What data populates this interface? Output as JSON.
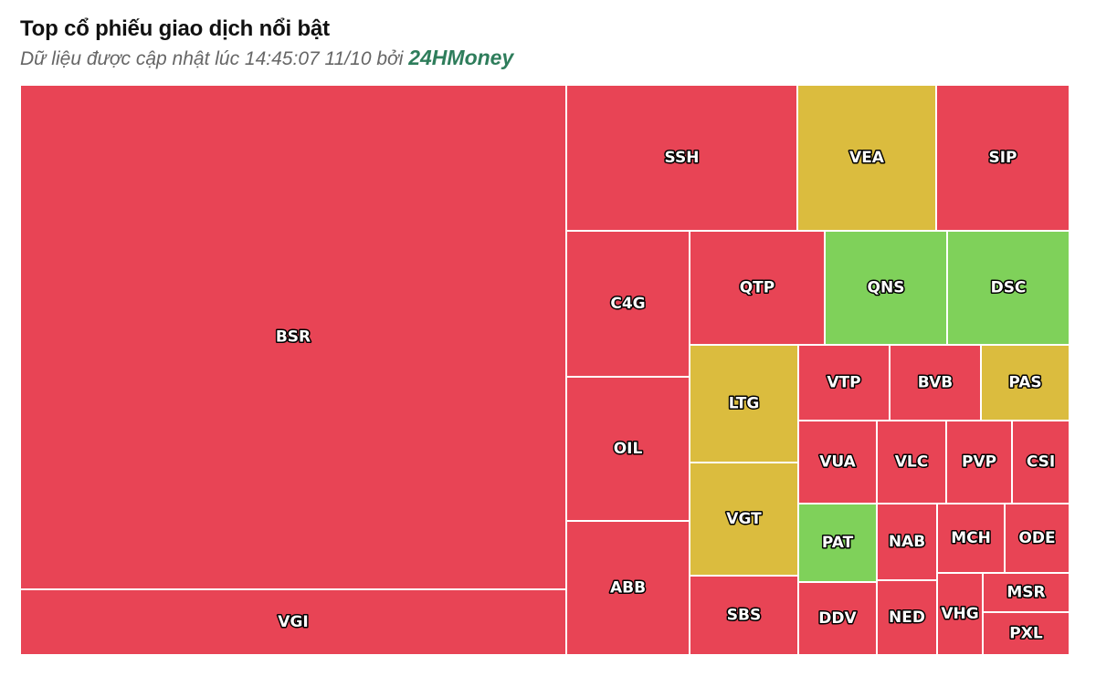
{
  "header": {
    "title": "Top cổ phiếu giao dịch nổi bật",
    "subtitle_prefix": "Dữ liệu được cập nhật lúc 14:45:07 11/10 bởi ",
    "brand": "24HMoney"
  },
  "colors": {
    "down": "#e84455",
    "unchanged": "#dbbc3e",
    "up": "#7fd15a",
    "border": "#ffffff"
  },
  "chart_data": {
    "type": "treemap",
    "title": "Top cổ phiếu giao dịch nổi bật",
    "items": [
      {
        "label": "BSR",
        "status": "down"
      },
      {
        "label": "VGI",
        "status": "down"
      },
      {
        "label": "SSH",
        "status": "down"
      },
      {
        "label": "VEA",
        "status": "unchanged"
      },
      {
        "label": "SIP",
        "status": "down"
      },
      {
        "label": "C4G",
        "status": "down"
      },
      {
        "label": "OIL",
        "status": "down"
      },
      {
        "label": "ABB",
        "status": "down"
      },
      {
        "label": "QTP",
        "status": "down"
      },
      {
        "label": "QNS",
        "status": "up"
      },
      {
        "label": "DSC",
        "status": "up"
      },
      {
        "label": "LTG",
        "status": "unchanged"
      },
      {
        "label": "VGT",
        "status": "unchanged"
      },
      {
        "label": "SBS",
        "status": "down"
      },
      {
        "label": "VTP",
        "status": "down"
      },
      {
        "label": "BVB",
        "status": "down"
      },
      {
        "label": "PAS",
        "status": "unchanged"
      },
      {
        "label": "VUA",
        "status": "down"
      },
      {
        "label": "VLC",
        "status": "down"
      },
      {
        "label": "PVP",
        "status": "down"
      },
      {
        "label": "CSI",
        "status": "down"
      },
      {
        "label": "PAT",
        "status": "up"
      },
      {
        "label": "NAB",
        "status": "down"
      },
      {
        "label": "MCH",
        "status": "down"
      },
      {
        "label": "ODE",
        "status": "down"
      },
      {
        "label": "DDV",
        "status": "down"
      },
      {
        "label": "NED",
        "status": "down"
      },
      {
        "label": "VHG",
        "status": "down"
      },
      {
        "label": "MSR",
        "status": "down"
      },
      {
        "label": "PXL",
        "status": "down"
      }
    ]
  }
}
